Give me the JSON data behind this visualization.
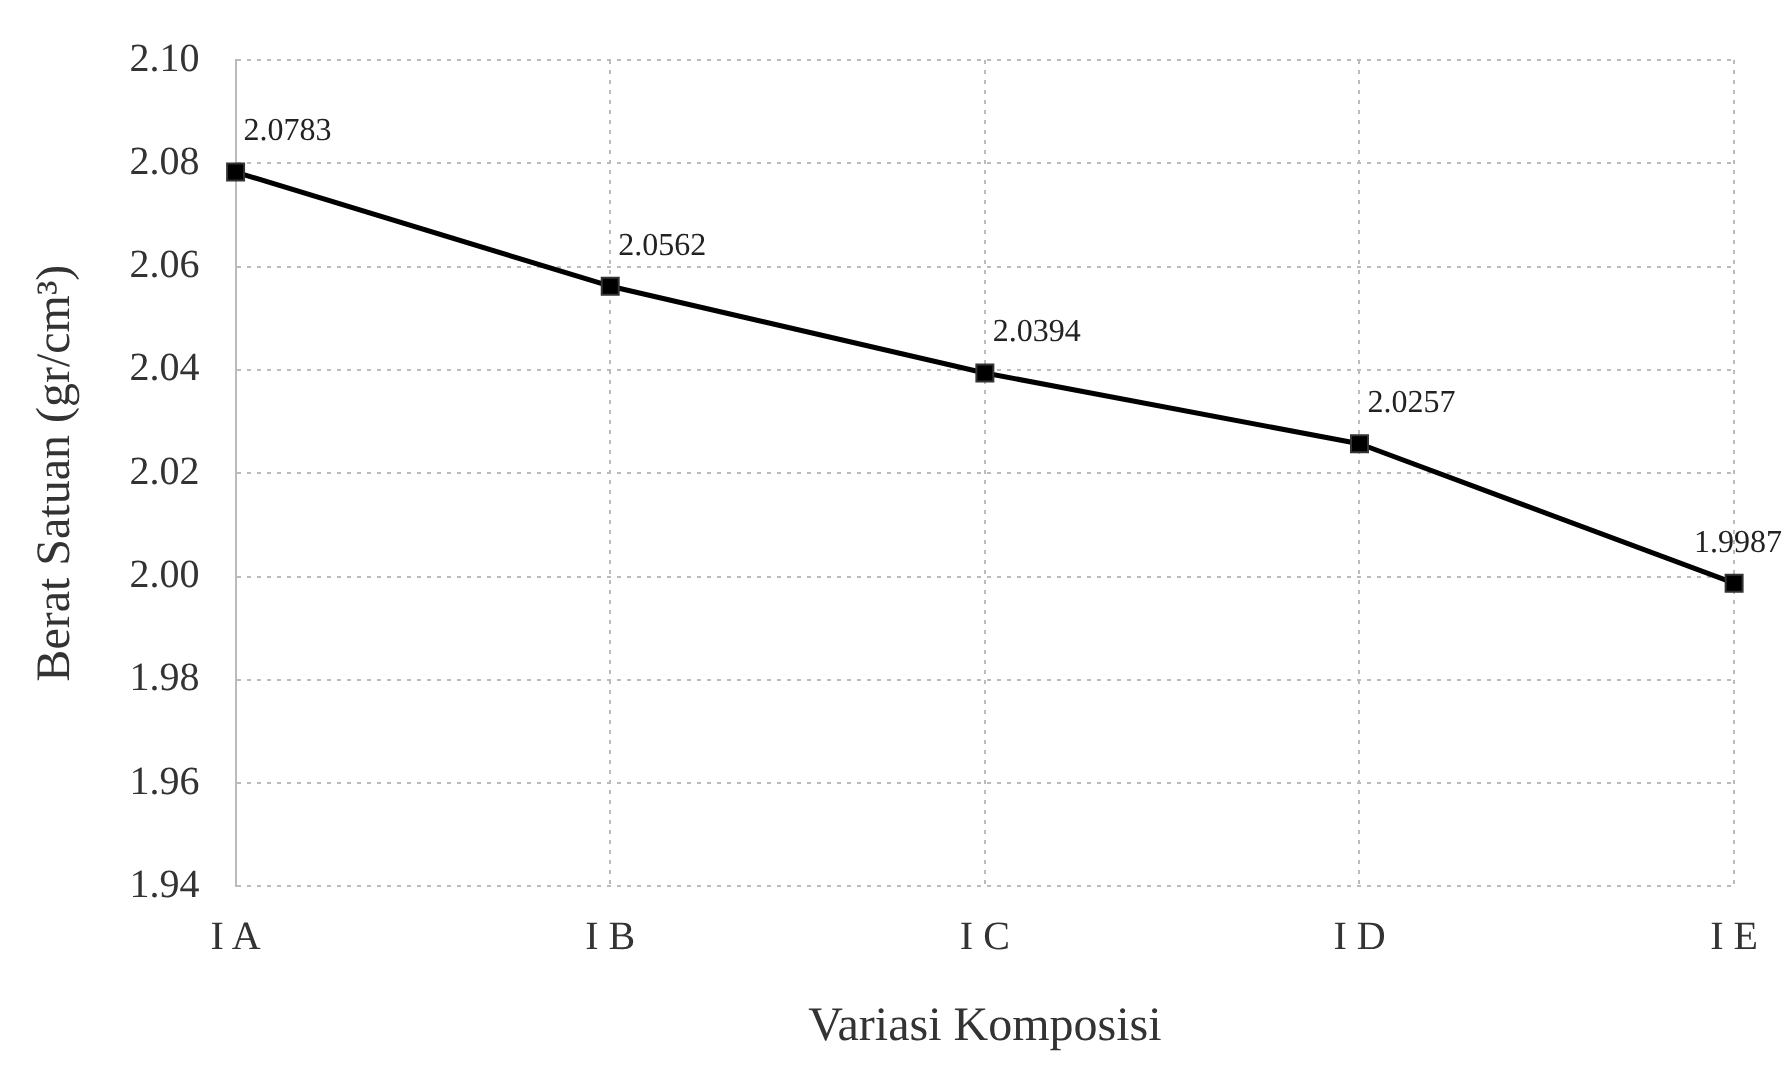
{
  "chart_data": {
    "type": "line",
    "xlabel": "Variasi Komposisi",
    "ylabel": "Berat Satuan (gr/cm³)",
    "categories": [
      "I A",
      "I B",
      "I C",
      "I D",
      "I E"
    ],
    "series": [
      {
        "color": "#000000",
        "values": [
          2.0783,
          2.0562,
          2.0394,
          2.0257,
          1.9987
        ]
      }
    ],
    "ylim": [
      1.94,
      2.1
    ],
    "yticks": [
      {
        "value": 1.94,
        "label": "1.94"
      },
      {
        "value": 1.96,
        "label": "1.96"
      },
      {
        "value": 1.98,
        "label": "1.98"
      },
      {
        "value": 2.0,
        "label": "2.00"
      },
      {
        "value": 2.02,
        "label": "2.02"
      },
      {
        "value": 2.04,
        "label": "2.04"
      },
      {
        "value": 2.06,
        "label": "2.06"
      },
      {
        "value": 2.08,
        "label": "2.08"
      },
      {
        "value": 2.1,
        "label": "2.10"
      }
    ],
    "grid": true,
    "legend": false,
    "marker": "square",
    "line_style": "solid",
    "data_labels": true
  }
}
